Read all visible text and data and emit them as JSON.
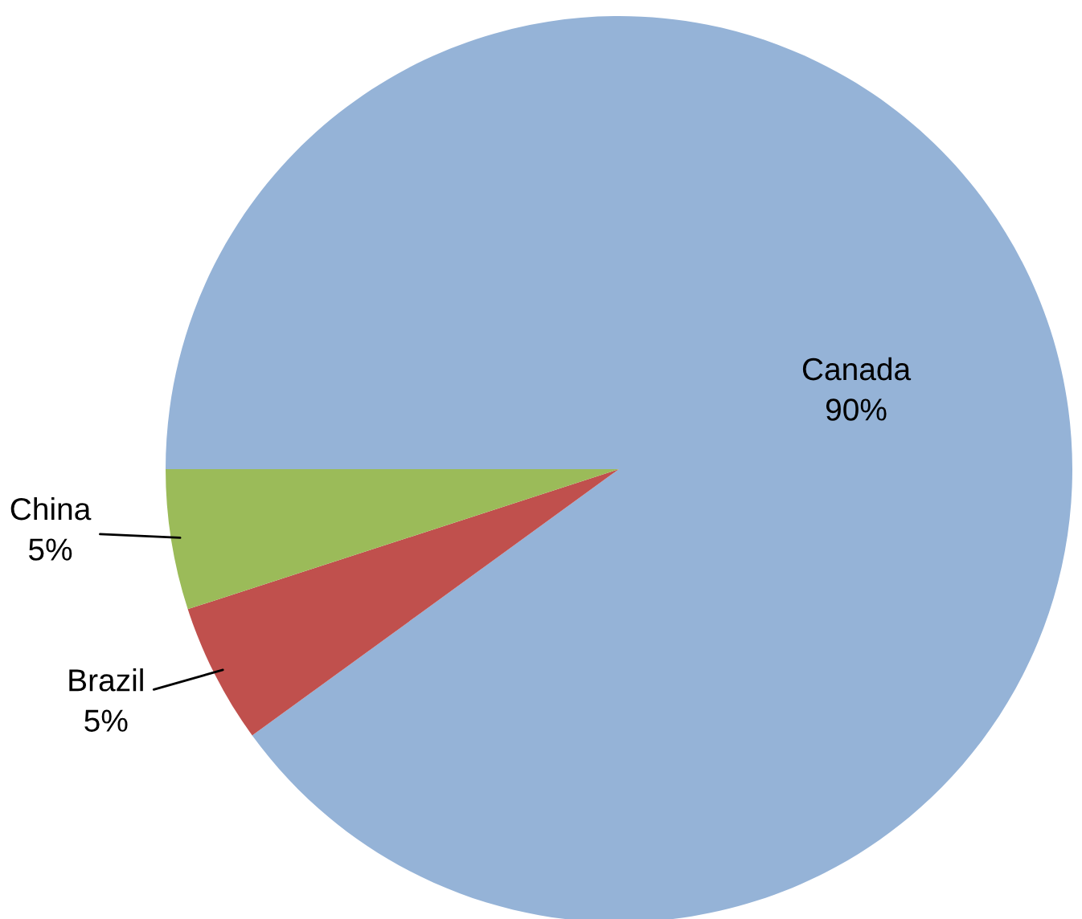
{
  "chart_data": {
    "type": "pie",
    "categories": [
      "Canada",
      "Brazil",
      "China"
    ],
    "values": [
      90,
      5,
      5
    ],
    "colors": [
      "#95b3d7",
      "#c0504d",
      "#9bbb59"
    ],
    "value_labels": [
      "90%",
      "5%",
      "5%"
    ]
  }
}
